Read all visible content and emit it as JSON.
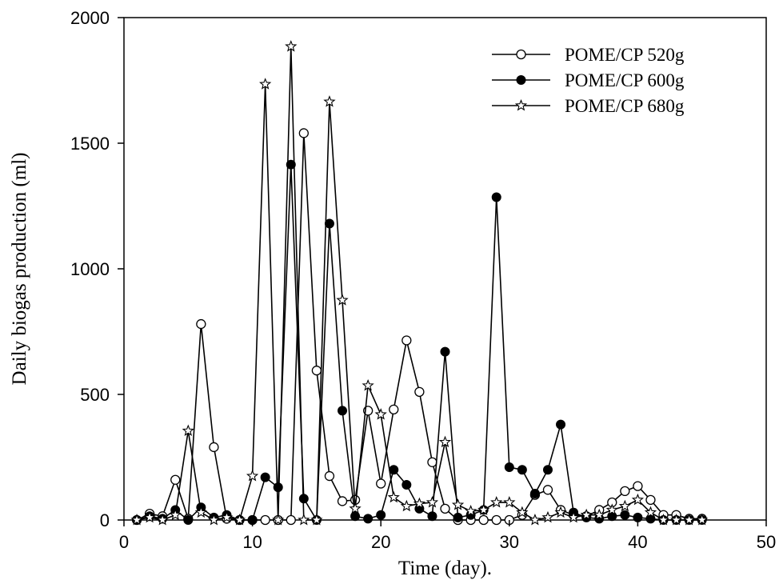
{
  "chart_data": {
    "type": "line",
    "title": "",
    "xlabel": "Time (day).",
    "ylabel": "Daily biogas production (ml)",
    "xlim": [
      0,
      50
    ],
    "ylim": [
      0,
      2000
    ],
    "xticks": [
      0,
      10,
      20,
      30,
      40,
      50
    ],
    "yticks": [
      0,
      500,
      1000,
      1500,
      2000
    ],
    "grid": false,
    "legend_position": "top-right",
    "series": [
      {
        "name": "POME/CP 520g",
        "marker": "open-circle",
        "x": [
          1,
          2,
          3,
          4,
          5,
          6,
          7,
          8,
          9,
          10,
          11,
          12,
          13,
          14,
          15,
          16,
          17,
          18,
          19,
          20,
          21,
          22,
          23,
          24,
          25,
          26,
          27,
          28,
          29,
          30,
          31,
          32,
          33,
          34,
          35,
          36,
          37,
          38,
          39,
          40,
          41,
          42,
          43,
          44,
          45
        ],
        "y": [
          0,
          25,
          15,
          160,
          5,
          780,
          290,
          5,
          0,
          0,
          0,
          0,
          0,
          1540,
          595,
          175,
          75,
          80,
          435,
          145,
          440,
          715,
          510,
          230,
          45,
          0,
          0,
          0,
          0,
          0,
          20,
          100,
          120,
          40,
          20,
          15,
          40,
          70,
          115,
          135,
          80,
          20,
          20,
          5,
          5
        ]
      },
      {
        "name": "POME/CP 600g",
        "marker": "filled-circle",
        "x": [
          1,
          2,
          3,
          4,
          5,
          6,
          7,
          8,
          9,
          10,
          11,
          12,
          13,
          14,
          15,
          16,
          17,
          18,
          19,
          20,
          21,
          22,
          23,
          24,
          25,
          26,
          27,
          28,
          29,
          30,
          31,
          32,
          33,
          34,
          35,
          36,
          37,
          38,
          39,
          40,
          41,
          42,
          43,
          44,
          45
        ],
        "y": [
          0,
          15,
          5,
          40,
          0,
          50,
          10,
          20,
          0,
          0,
          170,
          130,
          1415,
          85,
          0,
          1180,
          435,
          15,
          5,
          20,
          200,
          140,
          45,
          15,
          670,
          10,
          20,
          40,
          1285,
          210,
          200,
          105,
          200,
          380,
          30,
          10,
          5,
          15,
          20,
          10,
          5,
          0,
          0,
          0,
          0
        ]
      },
      {
        "name": "POME/CP 680g",
        "marker": "open-star",
        "x": [
          1,
          2,
          3,
          4,
          5,
          6,
          7,
          8,
          9,
          10,
          11,
          12,
          13,
          14,
          15,
          16,
          17,
          18,
          19,
          20,
          21,
          22,
          23,
          24,
          25,
          26,
          27,
          28,
          29,
          30,
          31,
          32,
          33,
          34,
          35,
          36,
          37,
          38,
          39,
          40,
          41,
          42,
          43,
          44,
          45
        ],
        "y": [
          0,
          10,
          0,
          20,
          355,
          30,
          0,
          10,
          0,
          175,
          1735,
          0,
          1885,
          0,
          0,
          1665,
          875,
          45,
          535,
          420,
          90,
          55,
          65,
          70,
          310,
          60,
          35,
          40,
          70,
          70,
          30,
          0,
          10,
          30,
          10,
          20,
          20,
          40,
          55,
          80,
          30,
          0,
          0,
          0,
          0
        ]
      }
    ]
  }
}
